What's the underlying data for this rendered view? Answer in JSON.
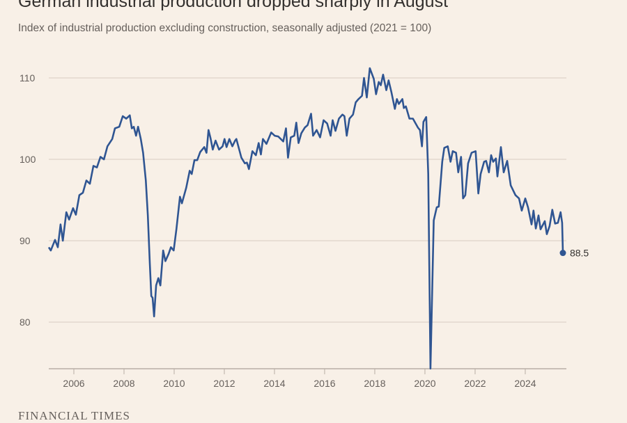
{
  "chart_data": {
    "type": "line",
    "title": "German industrial production dropped sharply in August",
    "subtitle": "Index of industrial production excluding construction, seasonally adjusted (2021 = 100)",
    "xlabel": "",
    "ylabel": "",
    "xlim": [
      2005,
      2025.64
    ],
    "ylim": [
      74.3,
      113
    ],
    "x_ticks": [
      2006,
      2008,
      2010,
      2012,
      2014,
      2016,
      2018,
      2020,
      2022,
      2024
    ],
    "y_ticks": [
      80,
      90,
      100,
      110
    ],
    "grid": "horizontal",
    "line_color": "#2f5592",
    "end_label": "88.5",
    "series": [
      {
        "points": [
          [
            2005.0,
            89.2
          ],
          [
            2005.08,
            88.8
          ],
          [
            2005.25,
            90.1
          ],
          [
            2005.36,
            89.2
          ],
          [
            2005.47,
            92.0
          ],
          [
            2005.56,
            90.0
          ],
          [
            2005.7,
            93.5
          ],
          [
            2005.81,
            92.6
          ],
          [
            2005.97,
            94.0
          ],
          [
            2006.08,
            93.2
          ],
          [
            2006.22,
            95.6
          ],
          [
            2006.36,
            95.9
          ],
          [
            2006.5,
            97.4
          ],
          [
            2006.64,
            97.0
          ],
          [
            2006.78,
            99.2
          ],
          [
            2006.92,
            99.0
          ],
          [
            2007.06,
            100.3
          ],
          [
            2007.2,
            100.0
          ],
          [
            2007.34,
            101.6
          ],
          [
            2007.53,
            102.5
          ],
          [
            2007.64,
            103.8
          ],
          [
            2007.81,
            104.0
          ],
          [
            2007.95,
            105.3
          ],
          [
            2008.09,
            105.0
          ],
          [
            2008.23,
            105.4
          ],
          [
            2008.31,
            103.8
          ],
          [
            2008.39,
            104.0
          ],
          [
            2008.48,
            102.9
          ],
          [
            2008.56,
            104.0
          ],
          [
            2008.67,
            102.5
          ],
          [
            2008.76,
            100.8
          ],
          [
            2008.87,
            97.4
          ],
          [
            2008.95,
            93.1
          ],
          [
            2009.03,
            87.1
          ],
          [
            2009.09,
            83.2
          ],
          [
            2009.14,
            83.0
          ],
          [
            2009.2,
            80.7
          ],
          [
            2009.28,
            84.5
          ],
          [
            2009.37,
            85.4
          ],
          [
            2009.45,
            84.5
          ],
          [
            2009.56,
            88.8
          ],
          [
            2009.65,
            87.5
          ],
          [
            2009.78,
            88.4
          ],
          [
            2009.87,
            89.2
          ],
          [
            2009.98,
            88.8
          ],
          [
            2010.09,
            91.4
          ],
          [
            2010.23,
            95.4
          ],
          [
            2010.31,
            94.6
          ],
          [
            2010.48,
            96.5
          ],
          [
            2010.62,
            98.6
          ],
          [
            2010.7,
            98.2
          ],
          [
            2010.81,
            99.9
          ],
          [
            2010.92,
            99.9
          ],
          [
            2011.04,
            100.9
          ],
          [
            2011.2,
            101.5
          ],
          [
            2011.29,
            100.8
          ],
          [
            2011.37,
            103.6
          ],
          [
            2011.45,
            102.6
          ],
          [
            2011.54,
            101.2
          ],
          [
            2011.65,
            102.3
          ],
          [
            2011.79,
            101.2
          ],
          [
            2011.93,
            101.6
          ],
          [
            2012.01,
            102.5
          ],
          [
            2012.09,
            101.5
          ],
          [
            2012.2,
            102.5
          ],
          [
            2012.32,
            101.6
          ],
          [
            2012.43,
            102.3
          ],
          [
            2012.48,
            102.5
          ],
          [
            2012.68,
            100.2
          ],
          [
            2012.82,
            99.5
          ],
          [
            2012.9,
            99.6
          ],
          [
            2012.98,
            98.8
          ],
          [
            2013.12,
            101.0
          ],
          [
            2013.26,
            100.5
          ],
          [
            2013.37,
            102.0
          ],
          [
            2013.46,
            100.6
          ],
          [
            2013.54,
            102.5
          ],
          [
            2013.68,
            101.9
          ],
          [
            2013.87,
            103.3
          ],
          [
            2014.01,
            102.9
          ],
          [
            2014.15,
            102.8
          ],
          [
            2014.35,
            102.2
          ],
          [
            2014.46,
            103.8
          ],
          [
            2014.54,
            100.2
          ],
          [
            2014.65,
            102.7
          ],
          [
            2014.79,
            102.9
          ],
          [
            2014.87,
            104.5
          ],
          [
            2014.96,
            102.0
          ],
          [
            2015.07,
            103.2
          ],
          [
            2015.21,
            103.9
          ],
          [
            2015.32,
            104.2
          ],
          [
            2015.46,
            105.6
          ],
          [
            2015.54,
            102.9
          ],
          [
            2015.68,
            103.6
          ],
          [
            2015.82,
            102.7
          ],
          [
            2015.96,
            104.8
          ],
          [
            2016.1,
            104.4
          ],
          [
            2016.24,
            102.9
          ],
          [
            2016.32,
            104.8
          ],
          [
            2016.43,
            103.5
          ],
          [
            2016.57,
            105.0
          ],
          [
            2016.71,
            105.5
          ],
          [
            2016.79,
            105.3
          ],
          [
            2016.88,
            102.9
          ],
          [
            2016.99,
            105.0
          ],
          [
            2017.13,
            105.5
          ],
          [
            2017.24,
            107.0
          ],
          [
            2017.35,
            107.4
          ],
          [
            2017.49,
            107.8
          ],
          [
            2017.57,
            110.0
          ],
          [
            2017.68,
            107.6
          ],
          [
            2017.8,
            111.2
          ],
          [
            2017.96,
            109.9
          ],
          [
            2018.05,
            108.0
          ],
          [
            2018.16,
            109.5
          ],
          [
            2018.24,
            109.1
          ],
          [
            2018.33,
            110.4
          ],
          [
            2018.46,
            108.5
          ],
          [
            2018.55,
            109.7
          ],
          [
            2018.66,
            108.3
          ],
          [
            2018.8,
            106.2
          ],
          [
            2018.88,
            107.4
          ],
          [
            2018.96,
            106.8
          ],
          [
            2019.1,
            107.4
          ],
          [
            2019.16,
            106.3
          ],
          [
            2019.24,
            106.5
          ],
          [
            2019.38,
            105.0
          ],
          [
            2019.52,
            105.0
          ],
          [
            2019.72,
            103.9
          ],
          [
            2019.8,
            103.6
          ],
          [
            2019.88,
            101.6
          ],
          [
            2019.94,
            104.6
          ],
          [
            2020.05,
            105.2
          ],
          [
            2020.13,
            98.2
          ],
          [
            2020.22,
            74.3
          ],
          [
            2020.35,
            92.5
          ],
          [
            2020.47,
            94.1
          ],
          [
            2020.55,
            94.2
          ],
          [
            2020.69,
            99.7
          ],
          [
            2020.77,
            101.4
          ],
          [
            2020.91,
            101.6
          ],
          [
            2021.02,
            99.7
          ],
          [
            2021.11,
            101.0
          ],
          [
            2021.24,
            100.8
          ],
          [
            2021.33,
            98.4
          ],
          [
            2021.44,
            100.3
          ],
          [
            2021.52,
            95.2
          ],
          [
            2021.61,
            95.6
          ],
          [
            2021.72,
            99.5
          ],
          [
            2021.86,
            100.8
          ],
          [
            2022.02,
            101.0
          ],
          [
            2022.13,
            95.8
          ],
          [
            2022.22,
            98.2
          ],
          [
            2022.36,
            99.7
          ],
          [
            2022.44,
            99.8
          ],
          [
            2022.55,
            98.4
          ],
          [
            2022.64,
            100.5
          ],
          [
            2022.72,
            99.7
          ],
          [
            2022.83,
            100.1
          ],
          [
            2022.89,
            97.9
          ],
          [
            2023.03,
            101.5
          ],
          [
            2023.14,
            98.4
          ],
          [
            2023.28,
            99.8
          ],
          [
            2023.42,
            96.8
          ],
          [
            2023.61,
            95.6
          ],
          [
            2023.75,
            95.2
          ],
          [
            2023.86,
            93.7
          ],
          [
            2024.0,
            95.2
          ],
          [
            2024.11,
            94.1
          ],
          [
            2024.25,
            92.0
          ],
          [
            2024.33,
            93.7
          ],
          [
            2024.42,
            91.5
          ],
          [
            2024.53,
            93.1
          ],
          [
            2024.61,
            91.4
          ],
          [
            2024.78,
            92.4
          ],
          [
            2024.86,
            90.8
          ],
          [
            2024.97,
            91.8
          ],
          [
            2025.08,
            93.8
          ],
          [
            2025.19,
            92.1
          ],
          [
            2025.3,
            92.2
          ],
          [
            2025.41,
            93.5
          ],
          [
            2025.47,
            92.2
          ],
          [
            2025.5,
            88.5
          ]
        ]
      }
    ]
  },
  "footer": {
    "brand": "FINANCIAL TIMES"
  }
}
